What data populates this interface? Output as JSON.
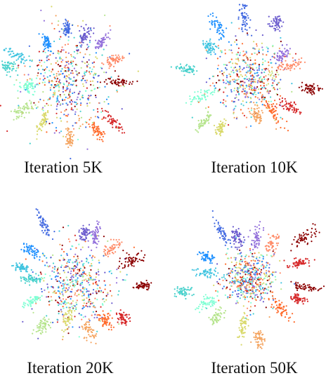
{
  "panels": [
    {
      "caption": "Iteration 5K"
    },
    {
      "caption": "Iteration 10K"
    },
    {
      "caption": "Iteration 20K"
    },
    {
      "caption": "Iteration 50K"
    }
  ]
}
